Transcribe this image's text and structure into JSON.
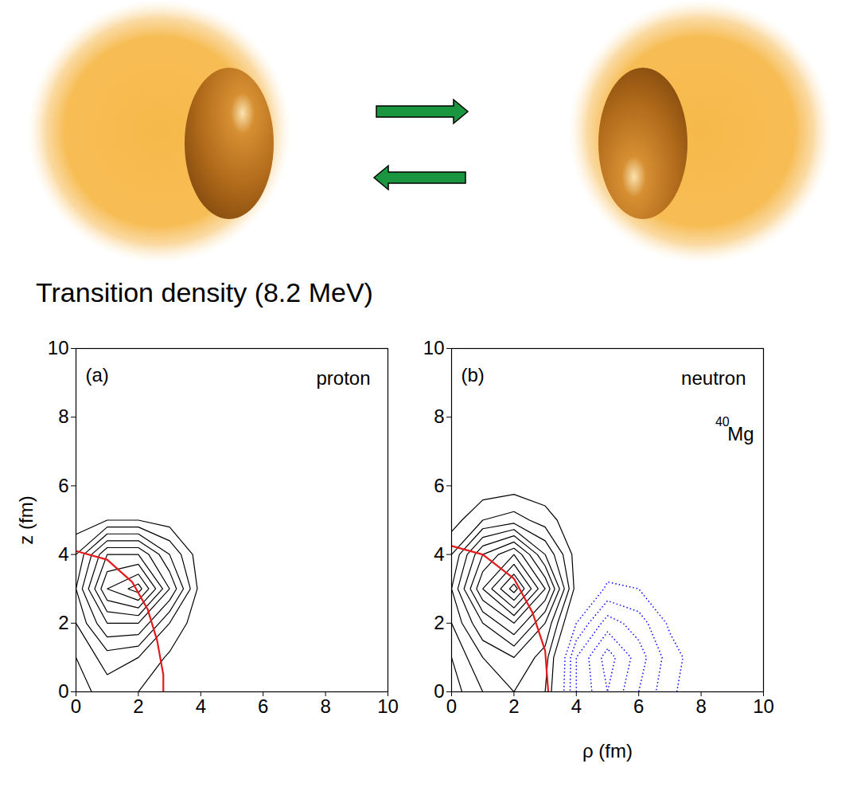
{
  "title": "Transition density (8.2 MeV)",
  "chart_data": [
    {
      "type": "contour",
      "panel": "(a)",
      "label": "proton",
      "ylabel": "z (fm)",
      "xlim": [
        0,
        10
      ],
      "ylim": [
        0,
        10
      ],
      "xticks": [
        0,
        2,
        4,
        6,
        8,
        10
      ],
      "yticks": [
        0,
        2,
        4,
        6,
        8,
        10
      ],
      "grid_rho": [
        0,
        1,
        2,
        3,
        4,
        5,
        6,
        7,
        8,
        9,
        10
      ],
      "grid_z": [
        0,
        1,
        2,
        3,
        4,
        5,
        6,
        7,
        8,
        9,
        10
      ],
      "density": [
        [
          0.5,
          1.5,
          1,
          0.3,
          0,
          0,
          0,
          0,
          0,
          0,
          0
        ],
        [
          1,
          2.5,
          2,
          0.8,
          0,
          0,
          0,
          0,
          0,
          0,
          0
        ],
        [
          2,
          5,
          5,
          2,
          0.2,
          0,
          0,
          0,
          0,
          0,
          0
        ],
        [
          3,
          8,
          9.5,
          5,
          0.5,
          0,
          0,
          0,
          0,
          0,
          0
        ],
        [
          2,
          6,
          6,
          3,
          0.3,
          0,
          0,
          0,
          0,
          0,
          0
        ],
        [
          0.3,
          1,
          1,
          0.5,
          0,
          0,
          0,
          0,
          0,
          0,
          0
        ],
        [
          0,
          0,
          0,
          0,
          0,
          0,
          0,
          0,
          0,
          0,
          0
        ],
        [
          0,
          0,
          0,
          0,
          0,
          0,
          0,
          0,
          0,
          0,
          0
        ],
        [
          0,
          0,
          0,
          0,
          0,
          0,
          0,
          0,
          0,
          0,
          0
        ],
        [
          0,
          0,
          0,
          0,
          0,
          0,
          0,
          0,
          0,
          0,
          0
        ],
        [
          0,
          0,
          0,
          0,
          0,
          0,
          0,
          0,
          0,
          0,
          0
        ]
      ],
      "contours": {
        "levels": [
          -5,
          -4,
          -3,
          -2,
          -1,
          1,
          2,
          3,
          4,
          5,
          6,
          7,
          8,
          9,
          10,
          11
        ],
        "positive": {
          "color": "#000000",
          "line_style": "solid"
        },
        "negative": {
          "color": "#0000ff",
          "line_style": "dotted"
        }
      },
      "surface": {
        "color": "#e41a1c",
        "rho": [
          0,
          1,
          1.8,
          2.3,
          2.6,
          2.8,
          2.8
        ],
        "z": [
          4.1,
          3.85,
          3.2,
          2.4,
          1.5,
          0.5,
          0
        ]
      }
    },
    {
      "type": "contour",
      "panel": "(b)",
      "label": "neutron",
      "nucleus": {
        "mass": "40",
        "symbol": "Mg"
      },
      "xlabel": "ρ (fm)",
      "xlim": [
        0,
        10
      ],
      "ylim": [
        0,
        10
      ],
      "xticks": [
        0,
        2,
        4,
        6,
        8,
        10
      ],
      "yticks": [
        0,
        2,
        4,
        6,
        8,
        10
      ],
      "grid_rho": [
        0,
        1,
        2,
        3,
        4,
        5,
        6,
        7,
        8,
        9,
        10
      ],
      "grid_z": [
        0,
        1,
        2,
        3,
        4,
        5,
        6,
        7,
        8,
        9,
        10
      ],
      "density": [
        [
          0.5,
          2,
          3,
          2,
          -3,
          -5,
          -3,
          -1.2,
          -0.3,
          0,
          0
        ],
        [
          1,
          3,
          4,
          2.5,
          -3,
          -5.5,
          -3.5,
          -1.5,
          -0.3,
          0,
          0
        ],
        [
          2,
          5,
          7,
          4,
          -1,
          -3.5,
          -2.5,
          -0.8,
          0,
          0,
          0
        ],
        [
          3,
          8,
          11.5,
          7,
          0.5,
          -1.2,
          -1,
          -0.2,
          0,
          0,
          0
        ],
        [
          2,
          6,
          8,
          4,
          0.5,
          -0.2,
          0,
          0,
          0,
          0,
          0
        ],
        [
          0.5,
          2,
          2.5,
          1.5,
          0.2,
          0,
          0,
          0,
          0,
          0,
          0
        ],
        [
          0,
          0.3,
          0.5,
          0.3,
          0,
          0,
          0,
          0,
          0,
          0,
          0
        ],
        [
          0,
          0,
          0,
          0,
          0,
          0,
          0,
          0,
          0,
          0,
          0
        ],
        [
          0,
          0,
          0,
          0,
          0,
          0,
          0,
          0,
          0,
          0,
          0
        ],
        [
          0,
          0,
          0,
          0,
          0,
          0,
          0,
          0,
          0,
          0,
          0
        ],
        [
          0,
          0,
          0,
          0,
          0,
          0,
          0,
          0,
          0,
          0,
          0
        ]
      ],
      "contours": {
        "levels": [
          -5,
          -4,
          -3,
          -2,
          -1,
          1,
          2,
          3,
          4,
          5,
          6,
          7,
          8,
          9,
          10,
          11
        ],
        "positive": {
          "color": "#000000",
          "line_style": "solid"
        },
        "negative": {
          "color": "#0000ff",
          "line_style": "dotted"
        }
      },
      "surface": {
        "color": "#e41a1c",
        "rho": [
          0,
          1,
          2,
          2.6,
          3,
          3.1
        ],
        "z": [
          4.25,
          4.0,
          3.3,
          2.3,
          1.2,
          0
        ]
      }
    }
  ]
}
